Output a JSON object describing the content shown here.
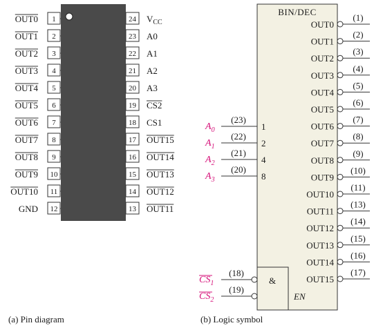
{
  "pin_diagram": {
    "caption": "(a) Pin diagram",
    "left_pins": [
      {
        "num": "1",
        "label": "OUT0",
        "overbar": true
      },
      {
        "num": "2",
        "label": "OUT1",
        "overbar": true
      },
      {
        "num": "3",
        "label": "OUT2",
        "overbar": true
      },
      {
        "num": "4",
        "label": "OUT3",
        "overbar": true
      },
      {
        "num": "5",
        "label": "OUT4",
        "overbar": true
      },
      {
        "num": "6",
        "label": "OUT5",
        "overbar": true
      },
      {
        "num": "7",
        "label": "OUT6",
        "overbar": true
      },
      {
        "num": "8",
        "label": "OUT7",
        "overbar": true
      },
      {
        "num": "9",
        "label": "OUT8",
        "overbar": true
      },
      {
        "num": "10",
        "label": "OUT9",
        "overbar": true
      },
      {
        "num": "11",
        "label": "OUT10",
        "overbar": true
      },
      {
        "num": "12",
        "label": "GND",
        "overbar": false
      }
    ],
    "right_pins": [
      {
        "num": "24",
        "label": "V",
        "sub": "CC",
        "overbar": false
      },
      {
        "num": "23",
        "label": "A0",
        "overbar": false
      },
      {
        "num": "22",
        "label": "A1",
        "overbar": false
      },
      {
        "num": "21",
        "label": "A2",
        "overbar": false
      },
      {
        "num": "20",
        "label": "A3",
        "overbar": false
      },
      {
        "num": "19",
        "label": "CS2",
        "overbar": true
      },
      {
        "num": "18",
        "label": "CS1",
        "overbar": false
      },
      {
        "num": "17",
        "label": "OUT15",
        "overbar": true
      },
      {
        "num": "16",
        "label": "OUT14",
        "overbar": true
      },
      {
        "num": "15",
        "label": "OUT13",
        "overbar": true
      },
      {
        "num": "14",
        "label": "OUT12",
        "overbar": true
      },
      {
        "num": "13",
        "label": "OUT11",
        "overbar": true
      }
    ]
  },
  "logic_symbol": {
    "caption": "(b) Logic symbol",
    "title": "BIN/DEC",
    "enable_gate": "&",
    "enable_label": "EN",
    "inputs": [
      {
        "name": "A",
        "sub": "0",
        "pin": "(23)",
        "weight": "1"
      },
      {
        "name": "A",
        "sub": "1",
        "pin": "(22)",
        "weight": "2"
      },
      {
        "name": "A",
        "sub": "2",
        "pin": "(21)",
        "weight": "4"
      },
      {
        "name": "A",
        "sub": "3",
        "pin": "(20)",
        "weight": "8"
      }
    ],
    "chip_selects": [
      {
        "name": "CS",
        "sub": "1",
        "pin": "(18)"
      },
      {
        "name": "CS",
        "sub": "2",
        "pin": "(19)"
      }
    ],
    "outputs": [
      {
        "label": "OUT0",
        "pin": "(1)"
      },
      {
        "label": "OUT1",
        "pin": "(2)"
      },
      {
        "label": "OUT2",
        "pin": "(3)"
      },
      {
        "label": "OUT3",
        "pin": "(4)"
      },
      {
        "label": "OUT4",
        "pin": "(5)"
      },
      {
        "label": "OUT5",
        "pin": "(6)"
      },
      {
        "label": "OUT6",
        "pin": "(7)"
      },
      {
        "label": "OUT7",
        "pin": "(8)"
      },
      {
        "label": "OUT8",
        "pin": "(9)"
      },
      {
        "label": "OUT9",
        "pin": "(10)"
      },
      {
        "label": "OUT10",
        "pin": "(11)"
      },
      {
        "label": "OUT11",
        "pin": "(13)"
      },
      {
        "label": "OUT12",
        "pin": "(14)"
      },
      {
        "label": "OUT13",
        "pin": "(15)"
      },
      {
        "label": "OUT14",
        "pin": "(16)"
      },
      {
        "label": "OUT15",
        "pin": "(17)"
      }
    ]
  },
  "colors": {
    "ic_body": "#4a4a4a",
    "symbol_fill": "#f3f1e3",
    "accent": "#d6127a"
  }
}
